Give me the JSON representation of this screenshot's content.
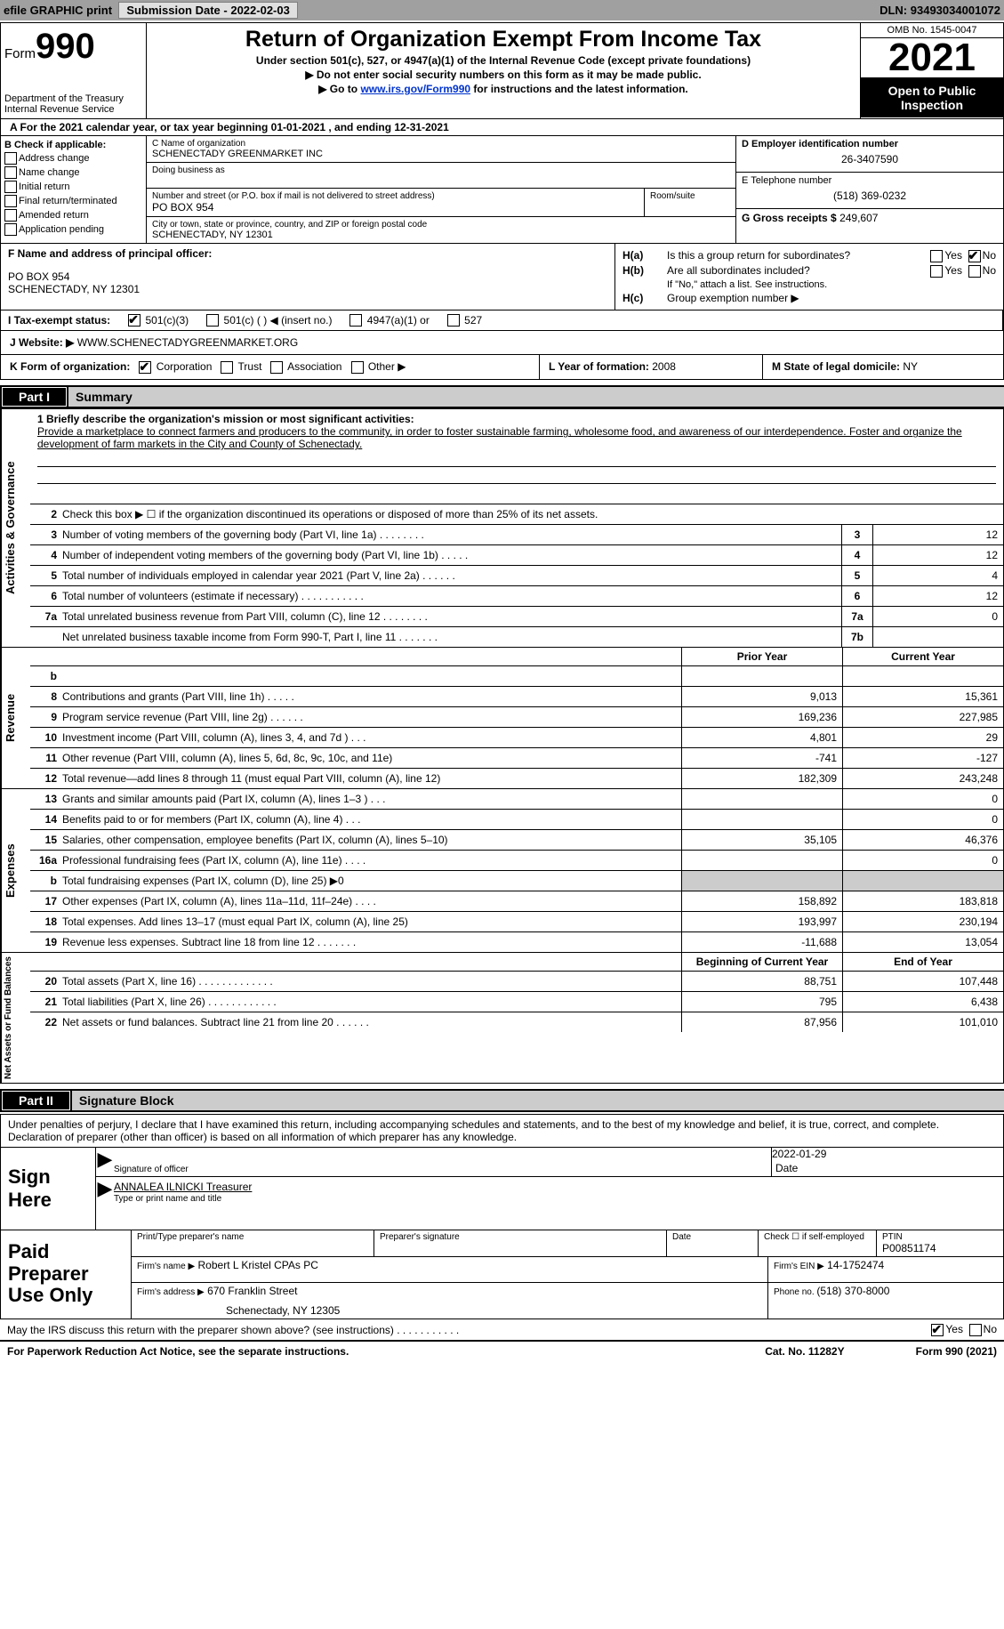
{
  "top_bar": {
    "efile": "efile GRAPHIC print",
    "submission_label": "Submission Date - ",
    "submission_date": "2022-02-03",
    "dln_label": "DLN: ",
    "dln": "93493034001072"
  },
  "header": {
    "form_word": "Form",
    "form_num": "990",
    "dept": "Department of the Treasury",
    "irs": "Internal Revenue Service",
    "title": "Return of Organization Exempt From Income Tax",
    "sub1": "Under section 501(c), 527, or 4947(a)(1) of the Internal Revenue Code (except private foundations)",
    "sub2": "▶ Do not enter social security numbers on this form as it may be made public.",
    "sub3_pre": "▶ Go to ",
    "sub3_link": "www.irs.gov/Form990",
    "sub3_post": " for instructions and the latest information.",
    "omb": "OMB No. 1545-0047",
    "year": "2021",
    "open": "Open to Public Inspection"
  },
  "section_a": {
    "text": "A  For the 2021 calendar year, or tax year beginning 01-01-2021    , and ending 12-31-2021"
  },
  "b": {
    "heading": "B Check if applicable:",
    "items": [
      "Address change",
      "Name change",
      "Initial return",
      "Final return/terminated",
      "Amended return",
      "Application pending"
    ]
  },
  "c": {
    "name_label": "C Name of organization",
    "name": "SCHENECTADY GREENMARKET INC",
    "dba_label": "Doing business as",
    "addr_label": "Number and street (or P.O. box if mail is not delivered to street address)",
    "room_label": "Room/suite",
    "addr": "PO BOX 954",
    "city_label": "City or town, state or province, country, and ZIP or foreign postal code",
    "city": "SCHENECTADY, NY  12301"
  },
  "d": {
    "ein_label": "D Employer identification number",
    "ein": "26-3407590",
    "phone_label": "E Telephone number",
    "phone": "(518) 369-0232",
    "gross_label": "G Gross receipts $",
    "gross": "249,607"
  },
  "f": {
    "label": "F  Name and address of principal officer:",
    "addr1": "PO BOX 954",
    "addr2": "SCHENECTADY, NY  12301"
  },
  "h": {
    "ha_lbl": "H(a)",
    "ha_txt": "Is this a group return for subordinates?",
    "hb_lbl": "H(b)",
    "hb_txt": "Are all subordinates included?",
    "hb_note": "If \"No,\" attach a list. See instructions.",
    "hc_lbl": "H(c)",
    "hc_txt": "Group exemption number ▶",
    "yes": "Yes",
    "no": "No"
  },
  "i": {
    "label": "I   Tax-exempt status:",
    "opts": [
      "501(c)(3)",
      "501(c) (  ) ◀ (insert no.)",
      "4947(a)(1) or",
      "527"
    ]
  },
  "j": {
    "label": "J   Website: ▶",
    "val": "  WWW.SCHENECTADYGREENMARKET.ORG"
  },
  "k": {
    "label": "K Form of organization:",
    "opts": [
      "Corporation",
      "Trust",
      "Association",
      "Other ▶"
    ]
  },
  "l": {
    "label": "L Year of formation: ",
    "val": "2008"
  },
  "m": {
    "label": "M State of legal domicile: ",
    "val": "NY"
  },
  "part1": {
    "num": "Part I",
    "title": "Summary"
  },
  "mission": {
    "prompt": "1  Briefly describe the organization's mission or most significant activities:",
    "text": "Provide a marketplace to connect farmers and producers to the community, in order to foster sustainable farming, wholesome food, and awareness of our interdependence. Foster and organize the development of farm markets in the City and County of Schenectady."
  },
  "gov_lines": [
    {
      "n": "2",
      "t": "Check this box ▶ ☐ if the organization discontinued its operations or disposed of more than 25% of its net assets.",
      "box": "",
      "v": ""
    },
    {
      "n": "3",
      "t": "Number of voting members of the governing body (Part VI, line 1a)   .     .     .     .     .     .     .     .",
      "box": "3",
      "v": "12"
    },
    {
      "n": "4",
      "t": "Number of independent voting members of the governing body (Part VI, line 1b)   .     .     .     .     .",
      "box": "4",
      "v": "12"
    },
    {
      "n": "5",
      "t": "Total number of individuals employed in calendar year 2021 (Part V, line 2a)    .     .     .     .     .     .",
      "box": "5",
      "v": "4"
    },
    {
      "n": "6",
      "t": "Total number of volunteers (estimate if necessary)    .     .     .     .     .     .     .     .     .     .     .",
      "box": "6",
      "v": "12"
    },
    {
      "n": "7a",
      "t": "Total unrelated business revenue from Part VIII, column (C), line 12    .     .     .     .     .     .     .     .",
      "box": "7a",
      "v": "0"
    },
    {
      "n": "",
      "t": "Net unrelated business taxable income from Form 990-T, Part I, line 11   .     .     .     .     .     .     .",
      "box": "7b",
      "v": ""
    }
  ],
  "col_headers": {
    "prior": "Prior Year",
    "current": "Current Year",
    "bocy": "Beginning of Current Year",
    "eoy": "End of Year"
  },
  "revenue": [
    {
      "n": "b",
      "t": "",
      "p": "",
      "c": ""
    },
    {
      "n": "8",
      "t": "Contributions and grants (Part VIII, line 1h)    .     .     .     .     .",
      "p": "9,013",
      "c": "15,361"
    },
    {
      "n": "9",
      "t": "Program service revenue (Part VIII, line 2g)   .     .     .     .     .     .",
      "p": "169,236",
      "c": "227,985"
    },
    {
      "n": "10",
      "t": "Investment income (Part VIII, column (A), lines 3, 4, and 7d )   .     .     .",
      "p": "4,801",
      "c": "29"
    },
    {
      "n": "11",
      "t": "Other revenue (Part VIII, column (A), lines 5, 6d, 8c, 9c, 10c, and 11e)",
      "p": "-741",
      "c": "-127"
    },
    {
      "n": "12",
      "t": "Total revenue—add lines 8 through 11 (must equal Part VIII, column (A), line 12)",
      "p": "182,309",
      "c": "243,248"
    }
  ],
  "expenses": [
    {
      "n": "13",
      "t": "Grants and similar amounts paid (Part IX, column (A), lines 1–3 )   .     .     .",
      "p": "",
      "c": "0"
    },
    {
      "n": "14",
      "t": "Benefits paid to or for members (Part IX, column (A), line 4)   .     .     .",
      "p": "",
      "c": "0"
    },
    {
      "n": "15",
      "t": "Salaries, other compensation, employee benefits (Part IX, column (A), lines 5–10)",
      "p": "35,105",
      "c": "46,376"
    },
    {
      "n": "16a",
      "t": "Professional fundraising fees (Part IX, column (A), line 11e)   .     .     .     .",
      "p": "",
      "c": "0"
    },
    {
      "n": "b",
      "t": "Total fundraising expenses (Part IX, column (D), line 25) ▶0",
      "p": "SHADE",
      "c": "SHADE"
    },
    {
      "n": "17",
      "t": "Other expenses (Part IX, column (A), lines 11a–11d, 11f–24e)   .     .     .     .",
      "p": "158,892",
      "c": "183,818"
    },
    {
      "n": "18",
      "t": "Total expenses. Add lines 13–17 (must equal Part IX, column (A), line 25)",
      "p": "193,997",
      "c": "230,194"
    },
    {
      "n": "19",
      "t": "Revenue less expenses. Subtract line 18 from line 12   .     .     .     .     .     .     .",
      "p": "-11,688",
      "c": "13,054"
    }
  ],
  "netassets": [
    {
      "n": "20",
      "t": "Total assets (Part X, line 16)  .     .     .     .     .     .     .     .     .     .     .     .     .",
      "p": "88,751",
      "c": "107,448"
    },
    {
      "n": "21",
      "t": "Total liabilities (Part X, line 26)   .     .     .     .     .     .     .     .     .     .     .     .",
      "p": "795",
      "c": "6,438"
    },
    {
      "n": "22",
      "t": "Net assets or fund balances. Subtract line 21 from line 20   .     .     .     .     .     .",
      "p": "87,956",
      "c": "101,010"
    }
  ],
  "vbars": {
    "gov": "Activities & Governance",
    "rev": "Revenue",
    "exp": "Expenses",
    "na": "Net Assets or Fund Balances"
  },
  "part2": {
    "num": "Part II",
    "title": "Signature Block"
  },
  "sig": {
    "decl": "Under penalties of perjury, I declare that I have examined this return, including accompanying schedules and statements, and to the best of my knowledge and belief, it is true, correct, and complete. Declaration of preparer (other than officer) is based on all information of which preparer has any knowledge.",
    "sign_here": "Sign Here",
    "sig_officer": "Signature of officer",
    "date": "Date",
    "date_val": "2022-01-29",
    "name": "ANNALEA ILNICKI  Treasurer",
    "type_name": "Type or print name and title",
    "paid": "Paid Preparer Use Only",
    "print_name": "Print/Type preparer's name",
    "prep_sig": "Preparer's signature",
    "date2": "Date",
    "check_if": "Check ☐ if self-employed",
    "ptin_lbl": "PTIN",
    "ptin": "P00851174",
    "firm_name_lbl": "Firm's name    ▶",
    "firm_name": "Robert L Kristel CPAs PC",
    "firm_ein_lbl": "Firm's EIN ▶",
    "firm_ein": "14-1752474",
    "firm_addr_lbl": "Firm's address ▶",
    "firm_addr1": "670 Franklin Street",
    "firm_addr2": "Schenectady, NY  12305",
    "phone_lbl": "Phone no. ",
    "phone": "(518) 370-8000"
  },
  "footer": {
    "discuss": "May the IRS discuss this return with the preparer shown above? (see instructions)   .     .     .     .     .     .     .     .     .     .     .",
    "yes": "Yes",
    "no": "No",
    "pra": "For Paperwork Reduction Act Notice, see the separate instructions.",
    "cat": "Cat. No. 11282Y",
    "form": "Form 990 (2021)"
  }
}
